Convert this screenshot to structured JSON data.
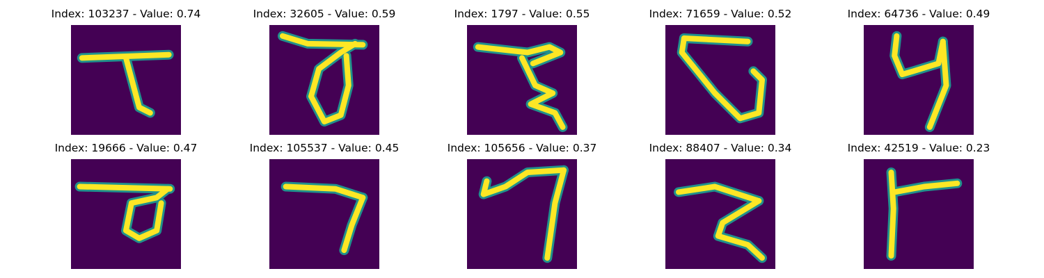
{
  "colors": {
    "background": "#440154",
    "stroke_mid": "#21918c",
    "stroke_core": "#fde725"
  },
  "panels": [
    {
      "index": "103237",
      "value": "0.74",
      "strokes": [
        [
          [
            0.1,
            0.3
          ],
          [
            0.89,
            0.27
          ]
        ],
        [
          [
            0.5,
            0.3
          ],
          [
            0.62,
            0.75
          ],
          [
            0.72,
            0.8
          ]
        ]
      ]
    },
    {
      "index": "32605",
      "value": "0.59",
      "strokes": [
        [
          [
            0.12,
            0.1
          ],
          [
            0.35,
            0.17
          ],
          [
            0.85,
            0.18
          ]
        ],
        [
          [
            0.78,
            0.17
          ],
          [
            0.65,
            0.25
          ],
          [
            0.45,
            0.4
          ],
          [
            0.38,
            0.65
          ],
          [
            0.5,
            0.88
          ],
          [
            0.65,
            0.82
          ],
          [
            0.72,
            0.55
          ],
          [
            0.7,
            0.28
          ]
        ]
      ]
    },
    {
      "index": "1797",
      "value": "0.55",
      "strokes": [
        [
          [
            0.1,
            0.2
          ],
          [
            0.55,
            0.25
          ],
          [
            0.75,
            0.2
          ],
          [
            0.85,
            0.25
          ],
          [
            0.6,
            0.35
          ]
        ],
        [
          [
            0.5,
            0.3
          ],
          [
            0.62,
            0.55
          ],
          [
            0.78,
            0.62
          ],
          [
            0.58,
            0.72
          ],
          [
            0.8,
            0.8
          ],
          [
            0.87,
            0.93
          ]
        ]
      ]
    },
    {
      "index": "71659",
      "value": "0.52",
      "strokes": [
        [
          [
            0.17,
            0.12
          ],
          [
            0.75,
            0.15
          ]
        ],
        [
          [
            0.17,
            0.12
          ],
          [
            0.15,
            0.25
          ],
          [
            0.45,
            0.62
          ],
          [
            0.68,
            0.85
          ],
          [
            0.85,
            0.8
          ],
          [
            0.88,
            0.5
          ],
          [
            0.8,
            0.42
          ]
        ]
      ]
    },
    {
      "index": "64736",
      "value": "0.49",
      "strokes": [
        [
          [
            0.3,
            0.1
          ],
          [
            0.28,
            0.28
          ],
          [
            0.35,
            0.45
          ],
          [
            0.45,
            0.42
          ],
          [
            0.68,
            0.35
          ],
          [
            0.72,
            0.15
          ]
        ],
        [
          [
            0.72,
            0.15
          ],
          [
            0.75,
            0.55
          ],
          [
            0.6,
            0.93
          ]
        ]
      ]
    },
    {
      "index": "19666",
      "value": "0.47",
      "strokes": [
        [
          [
            0.08,
            0.25
          ],
          [
            0.9,
            0.27
          ]
        ],
        [
          [
            0.88,
            0.27
          ],
          [
            0.78,
            0.35
          ],
          [
            0.55,
            0.4
          ],
          [
            0.5,
            0.65
          ],
          [
            0.62,
            0.72
          ],
          [
            0.78,
            0.65
          ],
          [
            0.82,
            0.4
          ]
        ]
      ]
    },
    {
      "index": "105537",
      "value": "0.45",
      "strokes": [
        [
          [
            0.15,
            0.25
          ],
          [
            0.6,
            0.27
          ],
          [
            0.85,
            0.35
          ]
        ],
        [
          [
            0.85,
            0.35
          ],
          [
            0.75,
            0.6
          ],
          [
            0.68,
            0.83
          ]
        ]
      ]
    },
    {
      "index": "105656",
      "value": "0.37",
      "strokes": [
        [
          [
            0.18,
            0.2
          ],
          [
            0.15,
            0.32
          ],
          [
            0.35,
            0.25
          ],
          [
            0.55,
            0.12
          ],
          [
            0.88,
            0.1
          ]
        ],
        [
          [
            0.88,
            0.1
          ],
          [
            0.8,
            0.4
          ],
          [
            0.73,
            0.9
          ]
        ]
      ]
    },
    {
      "index": "88407",
      "value": "0.34",
      "strokes": [
        [
          [
            0.12,
            0.3
          ],
          [
            0.45,
            0.25
          ],
          [
            0.85,
            0.38
          ]
        ],
        [
          [
            0.85,
            0.38
          ],
          [
            0.52,
            0.58
          ],
          [
            0.48,
            0.7
          ],
          [
            0.75,
            0.78
          ],
          [
            0.88,
            0.9
          ]
        ]
      ]
    },
    {
      "index": "42519",
      "value": "0.23",
      "strokes": [
        [
          [
            0.25,
            0.12
          ],
          [
            0.27,
            0.45
          ],
          [
            0.25,
            0.88
          ]
        ],
        [
          [
            0.28,
            0.3
          ],
          [
            0.55,
            0.25
          ],
          [
            0.85,
            0.22
          ]
        ]
      ]
    }
  ]
}
